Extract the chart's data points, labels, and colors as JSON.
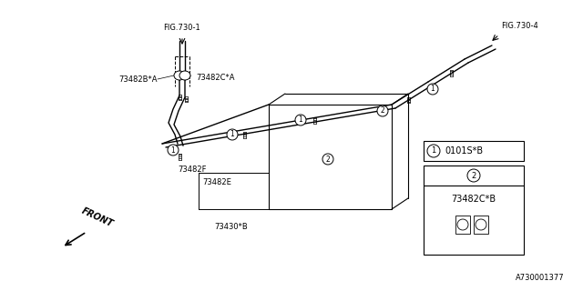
{
  "bg_color": "#ffffff",
  "line_color": "#000000",
  "fig_width": 6.4,
  "fig_height": 3.2,
  "labels": {
    "fig730_1": "FIG.730-1",
    "fig730_4": "FIG.730-4",
    "73482B": "73482B*A",
    "73482C_A": "73482C*A",
    "73482F": "73482F",
    "73482E": "73482E",
    "73430B": "73430*B",
    "front": "FRONT",
    "0101SB": "0101S*B",
    "73482CB": "73482C*B",
    "part_num": "A730001377"
  }
}
